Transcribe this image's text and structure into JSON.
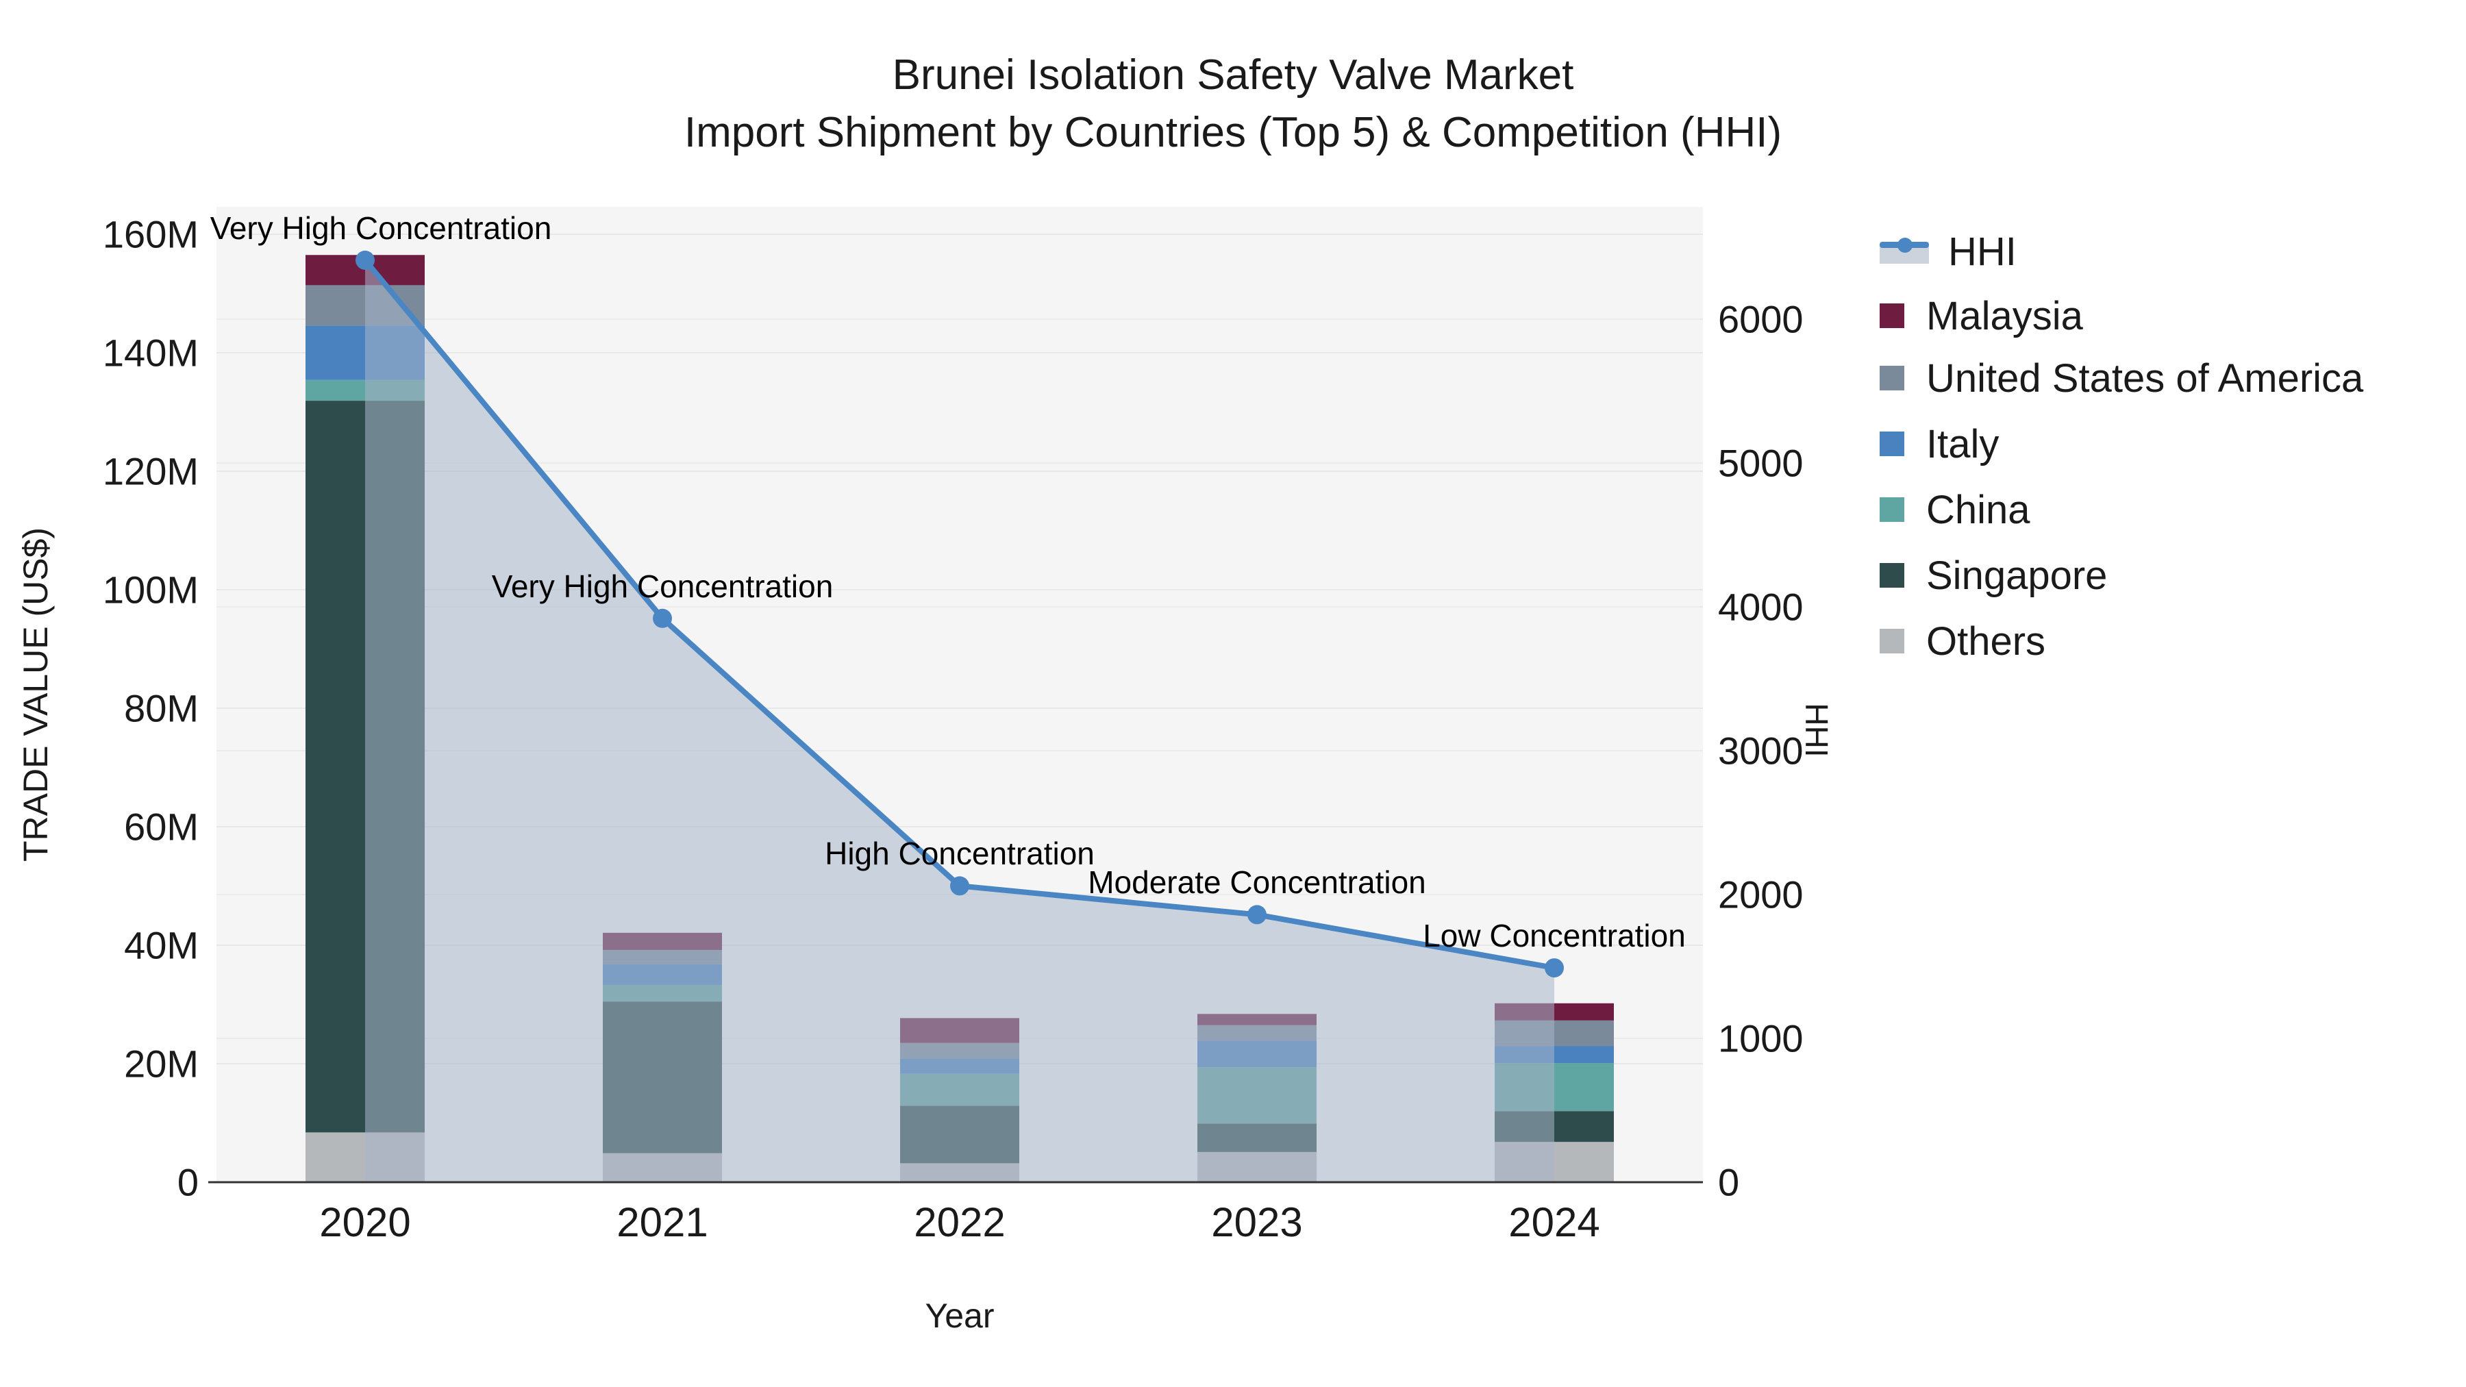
{
  "title": {
    "line1": "Brunei Isolation Safety Valve Market",
    "line2": "Import Shipment by Countries (Top 5) & Competition (HHI)"
  },
  "chart_data": {
    "type": "combo-stacked-bar-line",
    "categories": [
      "2020",
      "2021",
      "2022",
      "2023",
      "2024"
    ],
    "xlabel": "Year",
    "y_left_label": "TRADE VALUE (US$)",
    "y_right_label": "HHI",
    "y_left_unit": "million US$",
    "y_left_ticks": [
      "0",
      "20M",
      "40M",
      "60M",
      "80M",
      "100M",
      "120M",
      "140M",
      "160M"
    ],
    "y_left_tick_values": [
      0,
      20,
      40,
      60,
      80,
      100,
      120,
      140,
      160
    ],
    "y_left_range": [
      0,
      164.6
    ],
    "y_right_ticks": [
      "0",
      "1000",
      "2000",
      "3000",
      "4000",
      "5000",
      "6000"
    ],
    "y_right_tick_values": [
      0,
      1000,
      2000,
      3000,
      4000,
      5000,
      6000
    ],
    "y_right_range": [
      0,
      6780
    ],
    "grid": true,
    "legend_position": "right",
    "bar_series_bottom_to_top": [
      {
        "name": "Others",
        "color": "#b5b8ba",
        "values": [
          8.4,
          4.9,
          3.2,
          5.1,
          6.8
        ]
      },
      {
        "name": "Singapore",
        "color": "#2e4c4c",
        "values": [
          123.5,
          25.6,
          9.7,
          4.8,
          5.2
        ]
      },
      {
        "name": "China",
        "color": "#5fa5a1",
        "values": [
          3.5,
          2.8,
          5.4,
          9.5,
          8.1
        ]
      },
      {
        "name": "Italy",
        "color": "#4a82bf",
        "values": [
          9.2,
          3.5,
          2.6,
          4.5,
          2.9
        ]
      },
      {
        "name": "United States of America",
        "color": "#7b8a9b",
        "values": [
          6.8,
          2.4,
          2.6,
          2.6,
          4.3
        ]
      },
      {
        "name": "Malaysia",
        "color": "#6e1d40",
        "values": [
          5.1,
          2.9,
          4.2,
          1.9,
          2.9
        ]
      }
    ],
    "line_series": {
      "name": "HHI",
      "color": "#4a86c3",
      "area_fill": "rgba(165,180,200,0.55)",
      "values": [
        6410,
        3920,
        2060,
        1860,
        1490
      ]
    },
    "annotations": [
      {
        "text": "Very High Concentration",
        "category": "2020"
      },
      {
        "text": "Very High Concentration",
        "category": "2021"
      },
      {
        "text": "High Concentration",
        "category": "2022"
      },
      {
        "text": "Moderate Concentration",
        "category": "2023"
      },
      {
        "text": "Low Concentration",
        "category": "2024"
      }
    ],
    "legend_items": [
      {
        "name": "HHI",
        "type": "line",
        "color": "#4a86c3",
        "band": "#ccd3dd"
      },
      {
        "name": "Malaysia",
        "type": "swatch",
        "color": "#6e1d40"
      },
      {
        "name": "United States of America",
        "type": "swatch",
        "color": "#7b8a9b"
      },
      {
        "name": "Italy",
        "type": "swatch",
        "color": "#4a82bf"
      },
      {
        "name": "China",
        "type": "swatch",
        "color": "#5fa5a1"
      },
      {
        "name": "Singapore",
        "type": "swatch",
        "color": "#2e4c4c"
      },
      {
        "name": "Others",
        "type": "swatch",
        "color": "#b5b8ba"
      }
    ]
  }
}
